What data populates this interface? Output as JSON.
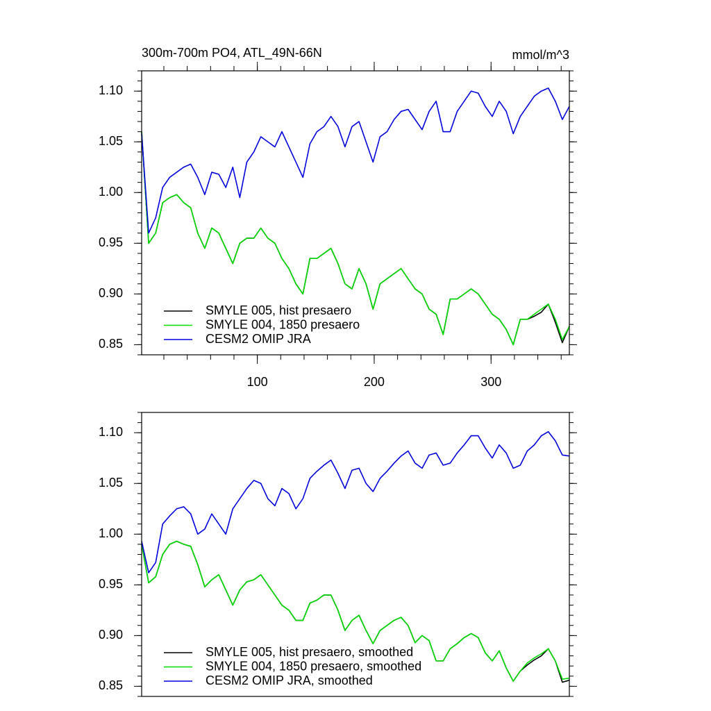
{
  "chart_data": [
    {
      "type": "line",
      "title": "300m-700m PO4, ATL_49N-66N",
      "units": "mmol/m^3",
      "x": [
        1,
        7,
        13,
        19,
        25,
        31,
        37,
        43,
        49,
        55,
        61,
        67,
        73,
        79,
        85,
        91,
        97,
        103,
        109,
        115,
        121,
        127,
        133,
        139,
        145,
        151,
        157,
        163,
        169,
        175,
        181,
        187,
        193,
        199,
        205,
        211,
        217,
        223,
        229,
        235,
        241,
        247,
        253,
        259,
        265,
        271,
        277,
        283,
        289,
        295,
        301,
        307,
        313,
        319,
        325,
        331,
        337,
        343,
        349,
        355,
        361,
        367
      ],
      "xlim": [
        1,
        367
      ],
      "xticks": [
        100,
        200,
        300
      ],
      "ylim": [
        0.84,
        1.12
      ],
      "yticks": [
        {
          "value": 0.85,
          "label": "0.85"
        },
        {
          "value": 0.9,
          "label": "0.90"
        },
        {
          "value": 0.95,
          "label": "0.95"
        },
        {
          "value": 1.0,
          "label": "1.00"
        },
        {
          "value": 1.05,
          "label": "1.05"
        },
        {
          "value": 1.1,
          "label": "1.10"
        }
      ],
      "series": [
        {
          "name": "SMYLE 005, hist presaero",
          "color": "#000000",
          "values": [
            1.06,
            0.95,
            0.96,
            0.99,
            0.995,
            0.998,
            0.99,
            0.985,
            0.96,
            0.945,
            0.965,
            0.96,
            0.945,
            0.93,
            0.95,
            0.955,
            0.955,
            0.965,
            0.955,
            0.95,
            0.935,
            0.925,
            0.91,
            0.9,
            0.935,
            0.935,
            0.94,
            0.945,
            0.93,
            0.91,
            0.905,
            0.925,
            0.91,
            0.885,
            0.91,
            0.915,
            0.92,
            0.925,
            0.915,
            0.905,
            0.9,
            0.885,
            0.88,
            0.86,
            0.895,
            0.895,
            0.9,
            0.905,
            0.9,
            0.89,
            0.88,
            0.875,
            0.865,
            0.85,
            0.875,
            0.875,
            0.878,
            0.882,
            0.89,
            0.872,
            0.852,
            0.868
          ]
        },
        {
          "name": "SMYLE 004, 1850 presaero",
          "color": "#00dd00",
          "values": [
            1.06,
            0.95,
            0.96,
            0.99,
            0.995,
            0.998,
            0.99,
            0.985,
            0.96,
            0.945,
            0.965,
            0.96,
            0.945,
            0.93,
            0.95,
            0.955,
            0.955,
            0.965,
            0.955,
            0.95,
            0.935,
            0.925,
            0.91,
            0.9,
            0.935,
            0.935,
            0.94,
            0.945,
            0.93,
            0.91,
            0.905,
            0.925,
            0.91,
            0.885,
            0.91,
            0.915,
            0.92,
            0.925,
            0.915,
            0.905,
            0.9,
            0.885,
            0.88,
            0.86,
            0.895,
            0.895,
            0.9,
            0.905,
            0.9,
            0.89,
            0.88,
            0.875,
            0.865,
            0.85,
            0.875,
            0.875,
            0.88,
            0.885,
            0.89,
            0.875,
            0.855,
            0.868
          ]
        },
        {
          "name": "CESM2 OMIP JRA",
          "color": "#0000dd",
          "values": [
            1.058,
            0.96,
            0.975,
            1.005,
            1.015,
            1.02,
            1.025,
            1.028,
            1.015,
            0.998,
            1.02,
            1.018,
            1.005,
            1.025,
            0.995,
            1.03,
            1.04,
            1.055,
            1.05,
            1.045,
            1.06,
            1.045,
            1.03,
            1.015,
            1.048,
            1.06,
            1.065,
            1.075,
            1.065,
            1.045,
            1.065,
            1.07,
            1.05,
            1.03,
            1.055,
            1.06,
            1.072,
            1.08,
            1.082,
            1.072,
            1.062,
            1.08,
            1.09,
            1.06,
            1.06,
            1.08,
            1.09,
            1.1,
            1.098,
            1.085,
            1.075,
            1.09,
            1.08,
            1.058,
            1.075,
            1.085,
            1.095,
            1.1,
            1.103,
            1.09,
            1.072,
            1.085
          ]
        }
      ]
    },
    {
      "type": "line",
      "x": [
        1,
        7,
        13,
        19,
        25,
        31,
        37,
        43,
        49,
        55,
        61,
        67,
        73,
        79,
        85,
        91,
        97,
        103,
        109,
        115,
        121,
        127,
        133,
        139,
        145,
        151,
        157,
        163,
        169,
        175,
        181,
        187,
        193,
        199,
        205,
        211,
        217,
        223,
        229,
        235,
        241,
        247,
        253,
        259,
        265,
        271,
        277,
        283,
        289,
        295,
        301,
        307,
        313,
        319,
        325,
        331,
        337,
        343,
        349,
        355,
        361,
        367
      ],
      "xlim": [
        1,
        367
      ],
      "ylim": [
        0.84,
        1.12
      ],
      "yticks": [
        {
          "value": 0.85,
          "label": "0.85"
        },
        {
          "value": 0.9,
          "label": "0.90"
        },
        {
          "value": 0.95,
          "label": "0.95"
        },
        {
          "value": 1.0,
          "label": "1.00"
        },
        {
          "value": 1.05,
          "label": "1.05"
        },
        {
          "value": 1.1,
          "label": "1.10"
        }
      ],
      "series": [
        {
          "name": "SMYLE 005, hist presaero, smoothed",
          "color": "#000000",
          "values": [
            0.99,
            0.952,
            0.958,
            0.98,
            0.99,
            0.993,
            0.99,
            0.988,
            0.97,
            0.948,
            0.955,
            0.96,
            0.945,
            0.93,
            0.945,
            0.953,
            0.955,
            0.96,
            0.95,
            0.94,
            0.93,
            0.925,
            0.915,
            0.915,
            0.932,
            0.935,
            0.94,
            0.94,
            0.925,
            0.905,
            0.915,
            0.92,
            0.905,
            0.892,
            0.905,
            0.91,
            0.915,
            0.918,
            0.91,
            0.893,
            0.9,
            0.895,
            0.875,
            0.875,
            0.887,
            0.892,
            0.898,
            0.902,
            0.898,
            0.883,
            0.875,
            0.885,
            0.868,
            0.855,
            0.865,
            0.871,
            0.876,
            0.88,
            0.887,
            0.875,
            0.854,
            0.856
          ]
        },
        {
          "name": "SMYLE 004, 1850 presaero, smoothed",
          "color": "#00dd00",
          "values": [
            0.99,
            0.952,
            0.958,
            0.98,
            0.99,
            0.993,
            0.99,
            0.988,
            0.97,
            0.948,
            0.955,
            0.96,
            0.945,
            0.93,
            0.945,
            0.953,
            0.955,
            0.96,
            0.95,
            0.94,
            0.93,
            0.925,
            0.915,
            0.915,
            0.932,
            0.935,
            0.94,
            0.94,
            0.925,
            0.905,
            0.915,
            0.92,
            0.905,
            0.892,
            0.905,
            0.91,
            0.915,
            0.918,
            0.91,
            0.893,
            0.9,
            0.895,
            0.875,
            0.875,
            0.887,
            0.892,
            0.898,
            0.902,
            0.898,
            0.883,
            0.875,
            0.885,
            0.868,
            0.855,
            0.865,
            0.873,
            0.878,
            0.882,
            0.887,
            0.875,
            0.857,
            0.858
          ]
        },
        {
          "name": "CESM2 OMIP JRA, smoothed",
          "color": "#0000dd",
          "values": [
            0.993,
            0.962,
            0.972,
            1.01,
            1.018,
            1.025,
            1.027,
            1.02,
            1.0,
            1.005,
            1.02,
            1.01,
            1.0,
            1.025,
            1.035,
            1.045,
            1.053,
            1.05,
            1.035,
            1.028,
            1.045,
            1.04,
            1.025,
            1.035,
            1.055,
            1.062,
            1.068,
            1.073,
            1.06,
            1.045,
            1.063,
            1.065,
            1.05,
            1.042,
            1.055,
            1.062,
            1.07,
            1.077,
            1.082,
            1.07,
            1.065,
            1.078,
            1.08,
            1.068,
            1.07,
            1.08,
            1.088,
            1.097,
            1.097,
            1.085,
            1.075,
            1.088,
            1.08,
            1.065,
            1.068,
            1.082,
            1.088,
            1.097,
            1.101,
            1.092,
            1.078,
            1.077
          ]
        }
      ]
    }
  ]
}
